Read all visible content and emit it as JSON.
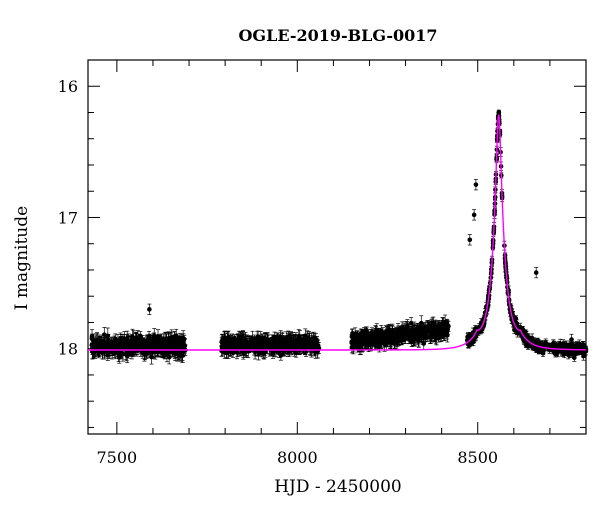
{
  "chart_data": {
    "type": "scatter",
    "title": "OGLE-2019-BLG-0017",
    "xlabel": "HJD - 2450000",
    "ylabel": "I magnitude",
    "xlim": [
      7420,
      8800
    ],
    "ylim": [
      18.65,
      15.8
    ],
    "y_inverted": true,
    "grid": false,
    "x_ticks": [
      {
        "value": 7500,
        "label": "7500"
      },
      {
        "value": 8000,
        "label": "8000"
      },
      {
        "value": 8500,
        "label": "8500"
      }
    ],
    "y_ticks": [
      {
        "value": 16,
        "label": "16"
      },
      {
        "value": 17,
        "label": "17"
      },
      {
        "value": 18,
        "label": "18"
      }
    ],
    "colors": {
      "data_points": "#000000",
      "model_curve": "#ff00ff",
      "axes": "#000000"
    },
    "series": [
      {
        "kind": "observations",
        "marker": "filled-circle-with-errorbars",
        "segments": [
          {
            "x_range": [
              7430,
              7690
            ],
            "baseline": 17.98,
            "scatter": 0.05
          },
          {
            "x_range": [
              7790,
              8060
            ],
            "baseline": 17.97,
            "scatter": 0.04
          },
          {
            "x_range": [
              8150,
              8420
            ],
            "baseline_start": 17.95,
            "baseline_end": 17.85,
            "scatter": 0.04
          },
          {
            "x_range": [
              8470,
              8800
            ],
            "follows_model": true,
            "scatter": 0.03
          }
        ],
        "peak": {
          "x": 8558,
          "y": 16.22
        },
        "outliers": [
          {
            "x": 7590,
            "y": 17.7
          },
          {
            "x": 8478,
            "y": 17.17
          },
          {
            "x": 8490,
            "y": 16.98
          },
          {
            "x": 8495,
            "y": 16.75
          },
          {
            "x": 8662,
            "y": 17.42
          },
          {
            "x": 8760,
            "y": 17.93
          }
        ]
      },
      {
        "kind": "model",
        "line": "solid",
        "shape": "point-lens",
        "t0": 8558,
        "u0": 0.14,
        "tE": 42,
        "baseline_mag": 18.01,
        "peak_mag": 16.22
      }
    ]
  }
}
